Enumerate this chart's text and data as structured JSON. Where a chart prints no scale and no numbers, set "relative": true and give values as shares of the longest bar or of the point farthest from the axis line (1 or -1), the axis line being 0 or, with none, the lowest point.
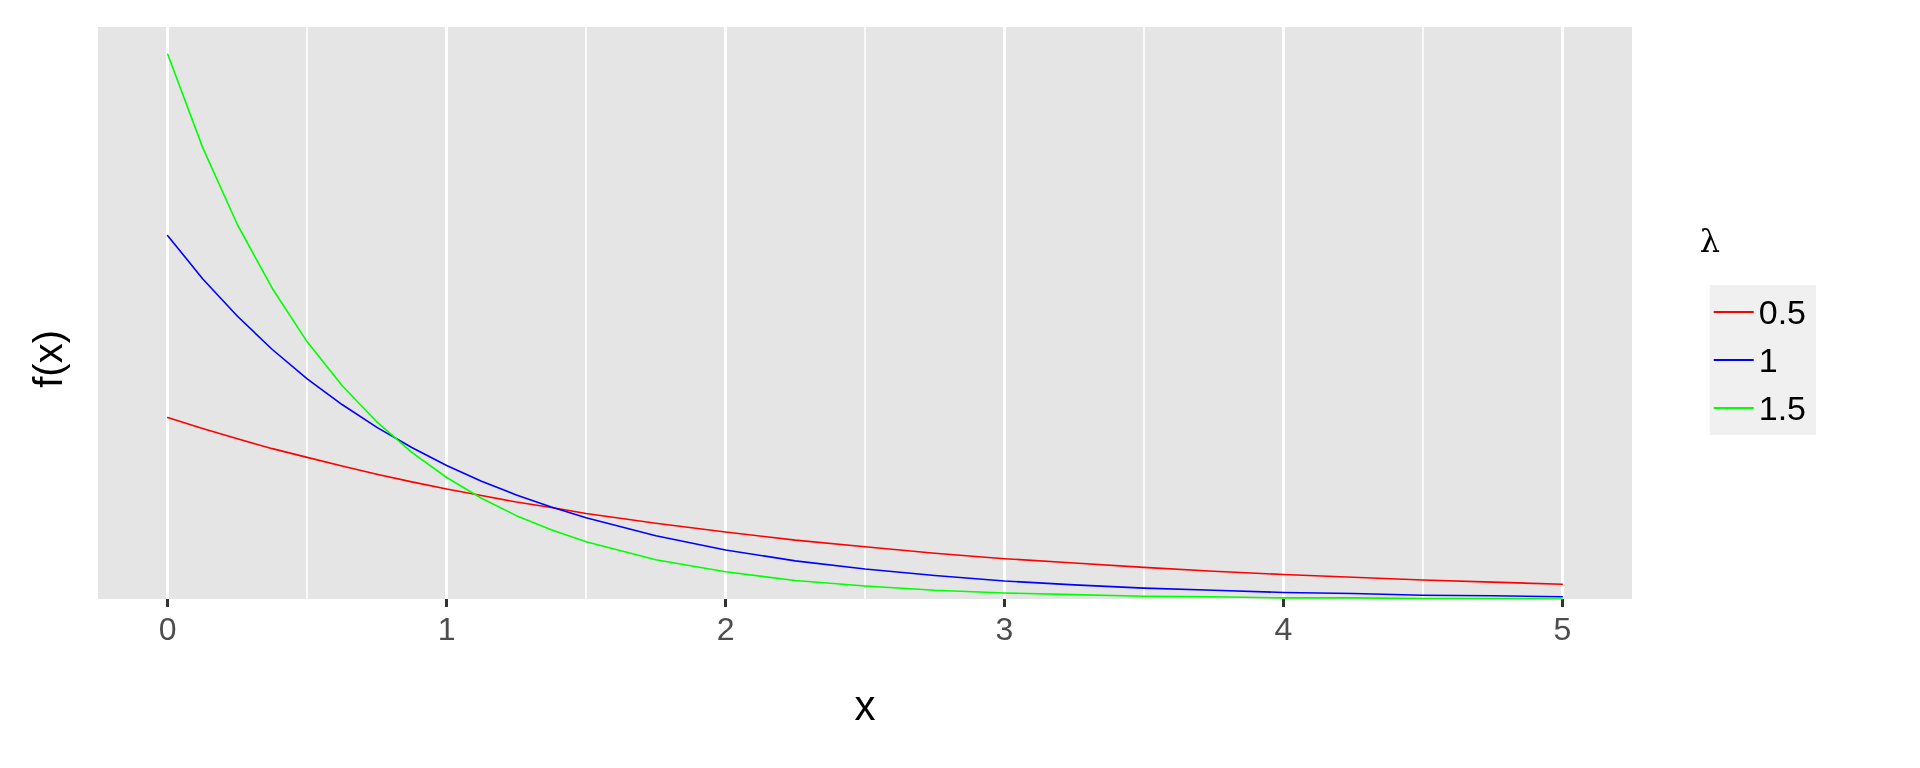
{
  "chart_data": {
    "type": "line",
    "relative": true,
    "xlabel": "x",
    "ylabel": "f(x)",
    "legend_title": "λ",
    "legend": "right",
    "grid": "x",
    "marker": "none",
    "line_style": "solid",
    "x": [
      0,
      0.125,
      0.25,
      0.375,
      0.5,
      0.625,
      0.75,
      0.875,
      1,
      1.125,
      1.25,
      1.375,
      1.5,
      1.75,
      2,
      2.25,
      2.5,
      2.75,
      3,
      3.25,
      3.5,
      3.75,
      4,
      4.25,
      4.5,
      4.75,
      5
    ],
    "xlim": [
      -0.25,
      5.25
    ],
    "xticks": [
      0,
      1,
      2,
      3,
      4,
      5
    ],
    "series": [
      {
        "name": "0.5",
        "color": "#ff0000",
        "values": [
          0.333,
          0.313,
          0.294,
          0.276,
          0.26,
          0.244,
          0.229,
          0.215,
          0.202,
          0.19,
          0.178,
          0.168,
          0.157,
          0.139,
          0.123,
          0.108,
          0.096,
          0.084,
          0.074,
          0.066,
          0.058,
          0.051,
          0.045,
          0.04,
          0.035,
          0.031,
          0.027
        ]
      },
      {
        "name": "1",
        "color": "#0000ff",
        "values": [
          0.667,
          0.588,
          0.519,
          0.458,
          0.404,
          0.357,
          0.315,
          0.278,
          0.245,
          0.216,
          0.191,
          0.169,
          0.149,
          0.116,
          0.09,
          0.07,
          0.055,
          0.043,
          0.033,
          0.026,
          0.02,
          0.016,
          0.012,
          0.01,
          0.007,
          0.006,
          0.004
        ]
      },
      {
        "name": "1.5",
        "color": "#00ff00",
        "values": [
          1,
          0.829,
          0.687,
          0.57,
          0.472,
          0.392,
          0.325,
          0.269,
          0.223,
          0.185,
          0.153,
          0.127,
          0.105,
          0.072,
          0.05,
          0.034,
          0.024,
          0.016,
          0.011,
          0.008,
          0.005,
          0.004,
          0.002,
          0.002,
          0.001,
          0.001,
          0
        ]
      }
    ]
  }
}
